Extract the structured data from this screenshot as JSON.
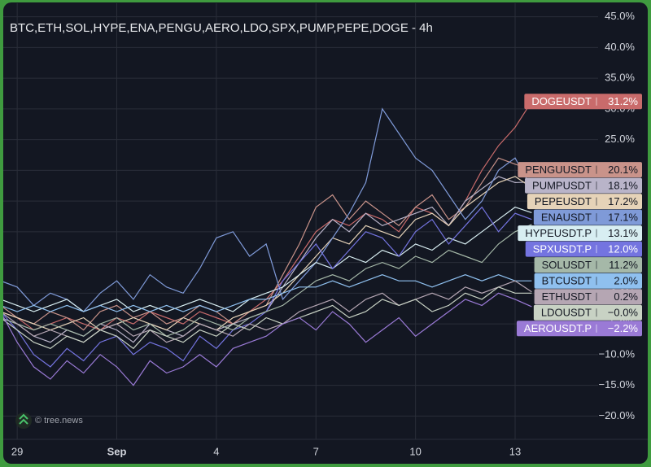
{
  "chart_data": {
    "type": "line",
    "title": "BTC,ETH,SOL,HYPE,ENA,PENGU,AERO,LDO,SPX,PUMP,PEPE,DOGE - 4h",
    "watermark": "© tree.news",
    "x": [
      -0.5,
      0,
      0.5,
      1,
      1.5,
      2,
      2.5,
      3,
      3.5,
      4,
      4.5,
      5,
      5.5,
      6,
      6.5,
      7,
      7.5,
      8,
      8.5,
      9,
      9.5,
      10,
      10.5,
      11,
      11.5,
      12,
      12.5,
      13,
      13.5,
      14,
      14.5,
      15,
      15.5
    ],
    "xlim": [
      -0.42,
      17.5
    ],
    "xticks": [
      {
        "value": 0,
        "label": "29"
      },
      {
        "value": 3,
        "label": "Sep"
      },
      {
        "value": 6,
        "label": "4"
      },
      {
        "value": 9,
        "label": "7"
      },
      {
        "value": 12,
        "label": "10"
      },
      {
        "value": 15,
        "label": "13"
      }
    ],
    "ylim": [
      -23.8,
      47.2
    ],
    "yticks": [
      {
        "value": -20,
        "label": "−20.0%"
      },
      {
        "value": -15,
        "label": "−15.0%"
      },
      {
        "value": -10,
        "label": "−10.0%"
      },
      {
        "value": -5,
        "label": "−5.0%"
      },
      {
        "value": 0,
        "label": "0.0%"
      },
      {
        "value": 5,
        "label": "5.0%"
      },
      {
        "value": 10,
        "label": "10.0%"
      },
      {
        "value": 15,
        "label": "15.0%"
      },
      {
        "value": 20,
        "label": "20.0%"
      },
      {
        "value": 25,
        "label": "25.0%"
      },
      {
        "value": 30,
        "label": "30.0%"
      },
      {
        "value": 35,
        "label": "35.0%"
      },
      {
        "value": 40,
        "label": "40.0%"
      },
      {
        "value": 45,
        "label": "45.0%"
      }
    ],
    "grid": true,
    "series": [
      {
        "name": "DOGEUSDT",
        "color": "#c96b6b",
        "values": [
          -3,
          -4,
          -6,
          -5,
          -4,
          -5,
          -6,
          -4,
          -5,
          -3,
          -4,
          -5,
          -3,
          -4,
          -5,
          -3,
          -1,
          2,
          6,
          10,
          12,
          11,
          13,
          12,
          10,
          14,
          13,
          11,
          15,
          20,
          24,
          27,
          31.2
        ],
        "value_labels": [
          "31.2%"
        ]
      },
      {
        "name": "PENGUUSDT",
        "color": "#c9938a",
        "values": [
          -2,
          -4,
          -5,
          -3,
          -4,
          -6,
          -3,
          -2,
          -4,
          -3,
          -5,
          -4,
          -2,
          -3,
          -5,
          -3,
          -2,
          3,
          8,
          14,
          16,
          12,
          15,
          13,
          11,
          14,
          16,
          12,
          14,
          18,
          22,
          21,
          20.1
        ],
        "value_labels": [
          "20.1%"
        ]
      },
      {
        "name": "PUMPUSDT",
        "color": "#b9b4c9",
        "values": [
          -4,
          -5,
          -7,
          -8,
          -6,
          -7,
          -5,
          -6,
          -8,
          -5,
          -6,
          -7,
          -5,
          -6,
          -5,
          -4,
          -3,
          1,
          5,
          9,
          12,
          10,
          13,
          11,
          12,
          13,
          14,
          11,
          15,
          17,
          19,
          18,
          18.1
        ],
        "value_labels": [
          "18.1%"
        ]
      },
      {
        "name": "PEPEUSDT",
        "color": "#e6d3b8",
        "values": [
          -3,
          -4,
          -5,
          -6,
          -5,
          -4,
          -6,
          -5,
          -4,
          -5,
          -6,
          -4,
          -5,
          -6,
          -4,
          -3,
          -2,
          0,
          3,
          6,
          9,
          8,
          11,
          10,
          9,
          12,
          13,
          11,
          14,
          16,
          18,
          19,
          17.2
        ],
        "value_labels": [
          "17.2%"
        ]
      },
      {
        "name": "ENAUSDT",
        "color": "#7f9ad8",
        "values": [
          2,
          1,
          -2,
          0,
          -1,
          -3,
          0,
          2,
          -1,
          3,
          1,
          0,
          4,
          9,
          10,
          6,
          8,
          -1,
          2,
          5,
          9,
          13,
          18,
          30,
          26,
          22,
          20,
          16,
          12,
          15,
          20,
          22,
          17.1
        ],
        "value_labels": [
          "17.1%"
        ]
      },
      {
        "name": "HYPEUSDT.P",
        "color": "#d8eef2",
        "values": [
          -1,
          -2,
          -3,
          -2,
          -1,
          -3,
          -2,
          -1,
          -3,
          -2,
          -3,
          -2,
          -1,
          -2,
          -3,
          -1,
          0,
          1,
          3,
          5,
          4,
          6,
          5,
          7,
          6,
          8,
          7,
          9,
          8,
          10,
          12,
          14,
          13.1
        ],
        "value_labels": [
          "13.1%"
        ]
      },
      {
        "name": "SPXUSDT.P",
        "color": "#7474e0",
        "values": [
          -3,
          -6,
          -10,
          -12,
          -9,
          -11,
          -8,
          -7,
          -10,
          -8,
          -9,
          -11,
          -7,
          -9,
          -6,
          -5,
          -3,
          2,
          5,
          8,
          4,
          7,
          10,
          9,
          6,
          10,
          12,
          8,
          11,
          14,
          10,
          13,
          12.0
        ],
        "value_labels": [
          "12.0%"
        ]
      },
      {
        "name": "SOLUSDT",
        "color": "#a5b8a8",
        "values": [
          -4,
          -5,
          -6,
          -5,
          -6,
          -7,
          -5,
          -4,
          -6,
          -5,
          -7,
          -6,
          -4,
          -5,
          -6,
          -4,
          -3,
          -2,
          0,
          2,
          3,
          2,
          4,
          5,
          4,
          6,
          5,
          7,
          6,
          5,
          8,
          10,
          11.2
        ],
        "value_labels": [
          "11.2%"
        ]
      },
      {
        "name": "BTCUSDT",
        "color": "#8fc0ef",
        "values": [
          -2,
          -3,
          -2,
          -3,
          -2,
          -3,
          -2,
          -3,
          -2,
          -3,
          -2,
          -3,
          -2,
          -3,
          -2,
          -1,
          -1,
          0,
          1,
          1,
          2,
          1,
          2,
          3,
          2,
          2,
          1,
          2,
          3,
          2,
          3,
          2,
          2.0
        ],
        "value_labels": [
          "2.0%"
        ]
      },
      {
        "name": "ETHUSDT",
        "color": "#b5a6b3",
        "values": [
          -3,
          -5,
          -7,
          -6,
          -7,
          -8,
          -6,
          -5,
          -7,
          -6,
          -8,
          -7,
          -5,
          -6,
          -7,
          -5,
          -6,
          -5,
          -3,
          -2,
          -1,
          -3,
          -1,
          0,
          -2,
          -1,
          0,
          -1,
          1,
          0,
          1,
          2,
          0.2
        ],
        "value_labels": [
          "0.2%"
        ]
      },
      {
        "name": "LDOUSDT",
        "color": "#c8d2c4",
        "values": [
          -4,
          -6,
          -8,
          -9,
          -7,
          -8,
          -6,
          -7,
          -9,
          -6,
          -7,
          -8,
          -6,
          -7,
          -5,
          -6,
          -4,
          -5,
          -4,
          -3,
          -2,
          -4,
          -3,
          -1,
          -2,
          -1,
          -3,
          -2,
          0,
          -1,
          1,
          0,
          0
        ],
        "value_labels": [
          "−0.0%"
        ]
      },
      {
        "name": "AEROUSDT.P",
        "color": "#9a7ad6",
        "values": [
          -3,
          -8,
          -12,
          -14,
          -11,
          -13,
          -10,
          -12,
          -15,
          -11,
          -13,
          -12,
          -10,
          -12,
          -9,
          -8,
          -7,
          -5,
          -4,
          -6,
          -3,
          -5,
          -8,
          -6,
          -4,
          -7,
          -5,
          -3,
          -1,
          -2,
          0,
          -1,
          -2.2
        ],
        "value_labels": [
          "−2.2%"
        ]
      }
    ]
  }
}
